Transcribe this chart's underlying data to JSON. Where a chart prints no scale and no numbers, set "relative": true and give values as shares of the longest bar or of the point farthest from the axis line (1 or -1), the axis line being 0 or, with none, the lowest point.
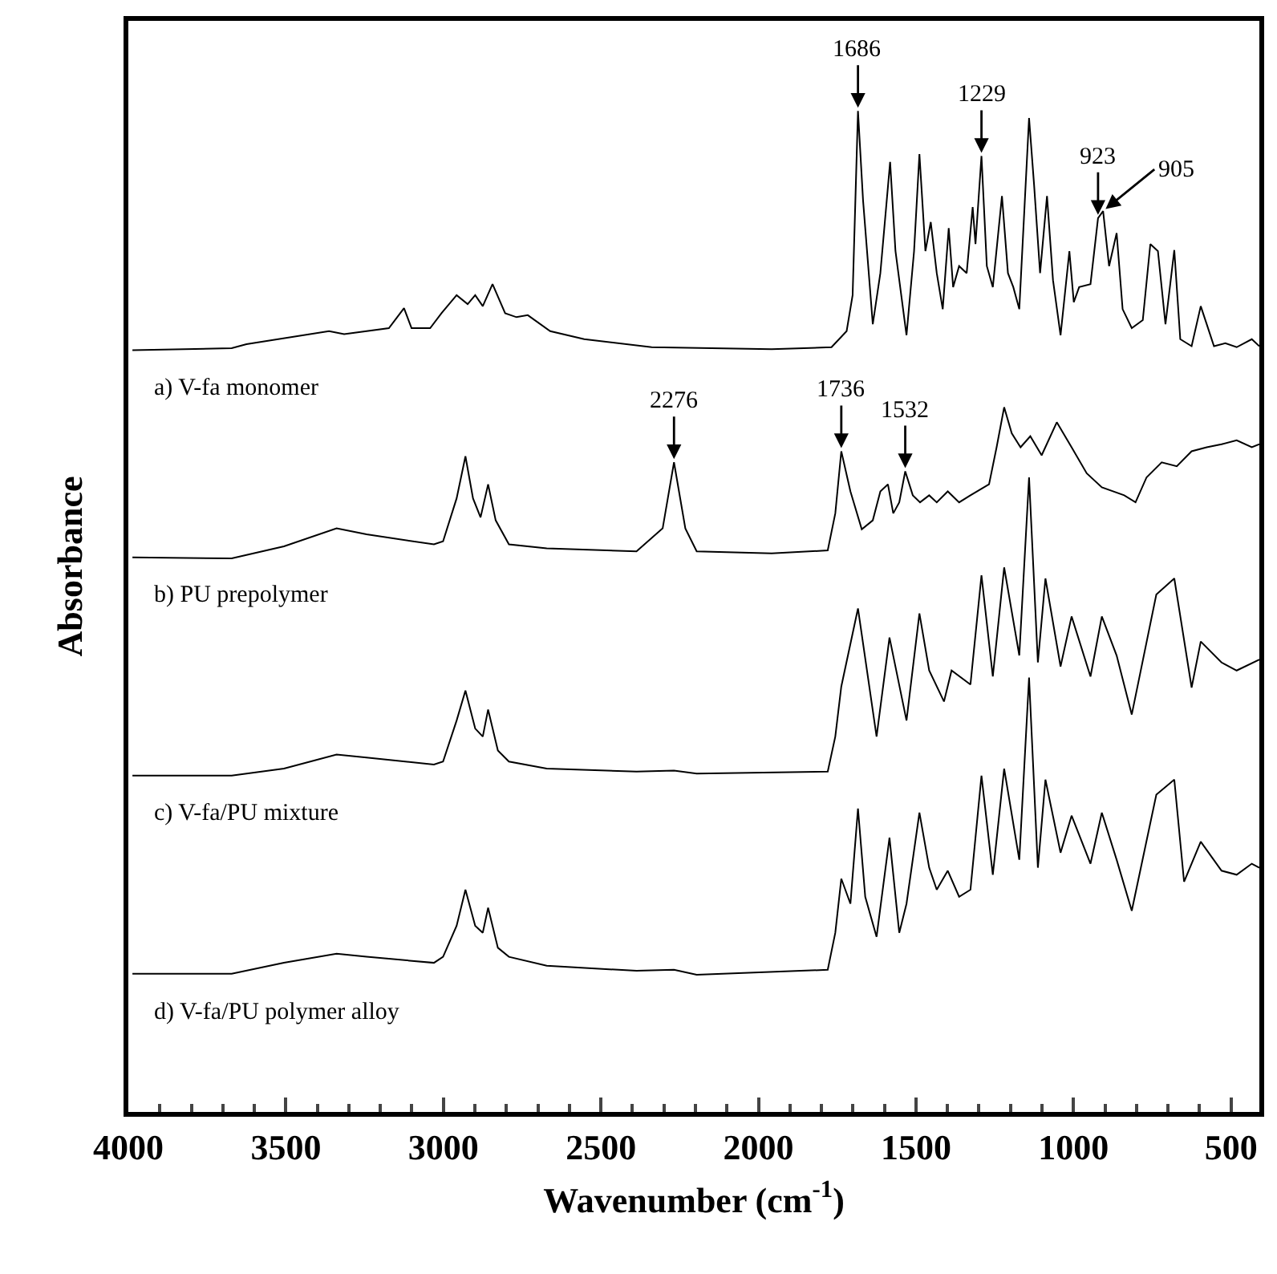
{
  "chart_data": {
    "type": "line",
    "relative": true,
    "xlabel": "Wavenumber (cm$^{-1}$)",
    "ylabel": "Absorbance",
    "xlim": [
      4000,
      410
    ],
    "xticks": [
      4000,
      {
        "value": 3900,
        "label": null
      },
      {
        "value": 3800,
        "label": null
      },
      {
        "value": 3700,
        "label": null
      },
      {
        "value": 3600,
        "label": null
      },
      3500,
      {
        "value": 3400,
        "label": null
      },
      {
        "value": 3300,
        "label": null
      },
      {
        "value": 3200,
        "label": null
      },
      {
        "value": 3100,
        "label": null
      },
      3000,
      {
        "value": 2900,
        "label": null
      },
      {
        "value": 2800,
        "label": null
      },
      {
        "value": 2700,
        "label": null
      },
      {
        "value": 2600,
        "label": null
      },
      2500,
      {
        "value": 2400,
        "label": null
      },
      {
        "value": 2300,
        "label": null
      },
      {
        "value": 2200,
        "label": null
      },
      {
        "value": 2100,
        "label": null
      },
      2000,
      {
        "value": 1900,
        "label": null
      },
      {
        "value": 1800,
        "label": null
      },
      {
        "value": 1700,
        "label": null
      },
      {
        "value": 1600,
        "label": null
      },
      1500,
      {
        "value": 1400,
        "label": null
      },
      {
        "value": 1300,
        "label": null
      },
      {
        "value": 1200,
        "label": null
      },
      {
        "value": 1100,
        "label": null
      },
      1000,
      {
        "value": 900,
        "label": null
      },
      {
        "value": 800,
        "label": null
      },
      {
        "value": 700,
        "label": null
      },
      {
        "value": 600,
        "label": null
      },
      500
    ],
    "legend": false,
    "marker": "none",
    "line_style": "solid",
    "series": [
      {
        "name": "a) V-fa monomer",
        "color": "#000000",
        "x": [
          3987,
          3672,
          3625,
          3363,
          3315,
          3173,
          3125,
          3101,
          3042,
          3006,
          2958,
          2923,
          2899,
          2875,
          2844,
          2804,
          2768,
          2732,
          2661,
          2553,
          2339,
          1958,
          1768,
          1720,
          1701,
          1684,
          1668,
          1637,
          1613,
          1582,
          1565,
          1530,
          1506,
          1489,
          1470,
          1453,
          1434,
          1415,
          1396,
          1382,
          1363,
          1339,
          1320,
          1311,
          1292,
          1275,
          1256,
          1227,
          1208,
          1191,
          1172,
          1141,
          1125,
          1106,
          1084,
          1065,
          1041,
          1013,
          999,
          982,
          946,
          922,
          906,
          887,
          863,
          844,
          815,
          780,
          756,
          732,
          708,
          680,
          661,
          625,
          596,
          577,
          554,
          518,
          482,
          434,
          410
        ],
        "values": [
          0.761,
          0.763,
          0.767,
          0.78,
          0.777,
          0.783,
          0.803,
          0.783,
          0.783,
          0.798,
          0.816,
          0.807,
          0.816,
          0.805,
          0.827,
          0.798,
          0.794,
          0.796,
          0.78,
          0.772,
          0.764,
          0.762,
          0.764,
          0.78,
          0.816,
          1.0,
          0.911,
          0.787,
          0.838,
          0.949,
          0.86,
          0.776,
          0.86,
          0.957,
          0.86,
          0.889,
          0.838,
          0.802,
          0.883,
          0.824,
          0.845,
          0.838,
          0.904,
          0.867,
          0.955,
          0.845,
          0.824,
          0.915,
          0.838,
          0.824,
          0.802,
          0.993,
          0.926,
          0.838,
          0.915,
          0.831,
          0.776,
          0.86,
          0.809,
          0.824,
          0.827,
          0.893,
          0.9,
          0.845,
          0.878,
          0.802,
          0.783,
          0.791,
          0.867,
          0.86,
          0.787,
          0.861,
          0.772,
          0.765,
          0.805,
          0.787,
          0.765,
          0.768,
          0.764,
          0.772,
          0.765
        ]
      },
      {
        "name": "b) PU prepolymer",
        "color": "#000000",
        "x": [
          3987,
          3672,
          3506,
          3339,
          3244,
          3030,
          3001,
          2958,
          2930,
          2906,
          2882,
          2858,
          2834,
          2792,
          2672,
          2387,
          2304,
          2268,
          2232,
          2196,
          1958,
          1780,
          1756,
          1737,
          1708,
          1672,
          1637,
          1613,
          1589,
          1572,
          1553,
          1534,
          1510,
          1487,
          1458,
          1434,
          1399,
          1363,
          1327,
          1268,
          1244,
          1220,
          1196,
          1168,
          1137,
          1101,
          1053,
          1006,
          958,
          910,
          839,
          803,
          768,
          720,
          672,
          625,
          577,
          530,
          482,
          434,
          410
        ],
        "values": [
          0.554,
          0.553,
          0.565,
          0.583,
          0.577,
          0.567,
          0.57,
          0.613,
          0.655,
          0.613,
          0.594,
          0.627,
          0.591,
          0.567,
          0.563,
          0.56,
          0.583,
          0.649,
          0.583,
          0.56,
          0.558,
          0.561,
          0.598,
          0.66,
          0.62,
          0.582,
          0.591,
          0.62,
          0.627,
          0.598,
          0.609,
          0.64,
          0.616,
          0.609,
          0.616,
          0.609,
          0.62,
          0.609,
          0.616,
          0.627,
          0.664,
          0.704,
          0.678,
          0.664,
          0.675,
          0.656,
          0.689,
          0.664,
          0.638,
          0.624,
          0.616,
          0.609,
          0.634,
          0.649,
          0.645,
          0.66,
          0.664,
          0.667,
          0.671,
          0.664,
          0.667
        ]
      },
      {
        "name": "c) V-fa/PU mixture",
        "color": "#000000",
        "x": [
          3987,
          3672,
          3506,
          3339,
          3244,
          3030,
          3001,
          2958,
          2930,
          2899,
          2875,
          2858,
          2827,
          2792,
          2672,
          2387,
          2268,
          2196,
          1780,
          1756,
          1737,
          1684,
          1625,
          1584,
          1530,
          1489,
          1458,
          1411,
          1387,
          1327,
          1292,
          1256,
          1220,
          1172,
          1141,
          1113,
          1089,
          1041,
          1006,
          946,
          910,
          863,
          815,
          737,
          680,
          625,
          596,
          530,
          482,
          410
        ],
        "values": [
          0.336,
          0.336,
          0.343,
          0.357,
          0.354,
          0.347,
          0.35,
          0.391,
          0.421,
          0.383,
          0.375,
          0.402,
          0.361,
          0.35,
          0.343,
          0.34,
          0.341,
          0.338,
          0.34,
          0.375,
          0.425,
          0.503,
          0.375,
          0.474,
          0.391,
          0.498,
          0.441,
          0.41,
          0.441,
          0.427,
          0.536,
          0.435,
          0.544,
          0.456,
          0.634,
          0.449,
          0.533,
          0.445,
          0.495,
          0.435,
          0.495,
          0.456,
          0.397,
          0.517,
          0.533,
          0.424,
          0.47,
          0.449,
          0.441,
          0.452
        ]
      },
      {
        "name": "d) V-fa/PU polymer alloy",
        "color": "#000000",
        "x": [
          3987,
          3672,
          3506,
          3339,
          3244,
          3030,
          3001,
          2958,
          2930,
          2899,
          2875,
          2858,
          2827,
          2792,
          2672,
          2387,
          2268,
          2196,
          1780,
          1756,
          1737,
          1708,
          1684,
          1661,
          1625,
          1584,
          1553,
          1530,
          1489,
          1458,
          1434,
          1399,
          1363,
          1327,
          1292,
          1256,
          1220,
          1172,
          1141,
          1113,
          1089,
          1041,
          1006,
          946,
          910,
          863,
          815,
          737,
          680,
          649,
          596,
          530,
          482,
          434,
          410
        ],
        "values": [
          0.138,
          0.138,
          0.149,
          0.158,
          0.155,
          0.149,
          0.155,
          0.186,
          0.222,
          0.186,
          0.179,
          0.204,
          0.164,
          0.155,
          0.146,
          0.141,
          0.142,
          0.137,
          0.142,
          0.179,
          0.233,
          0.208,
          0.303,
          0.215,
          0.175,
          0.274,
          0.179,
          0.208,
          0.299,
          0.244,
          0.222,
          0.241,
          0.215,
          0.222,
          0.336,
          0.237,
          0.343,
          0.252,
          0.434,
          0.244,
          0.332,
          0.259,
          0.296,
          0.248,
          0.299,
          0.252,
          0.201,
          0.317,
          0.332,
          0.23,
          0.27,
          0.241,
          0.237,
          0.248,
          0.244
        ]
      }
    ],
    "annotations": [
      {
        "text": "1686",
        "x": 1684,
        "y": 1.0
      },
      {
        "text": "1229",
        "x": 1292,
        "y": 0.955
      },
      {
        "text": "923",
        "x": 922,
        "y": 0.893
      },
      {
        "text": "905",
        "x": 906,
        "y": 0.9
      },
      {
        "text": "2276",
        "x": 2268,
        "y": 0.649
      },
      {
        "text": "1736",
        "x": 1737,
        "y": 0.66
      },
      {
        "text": "1532",
        "x": 1534,
        "y": 0.64
      }
    ]
  }
}
